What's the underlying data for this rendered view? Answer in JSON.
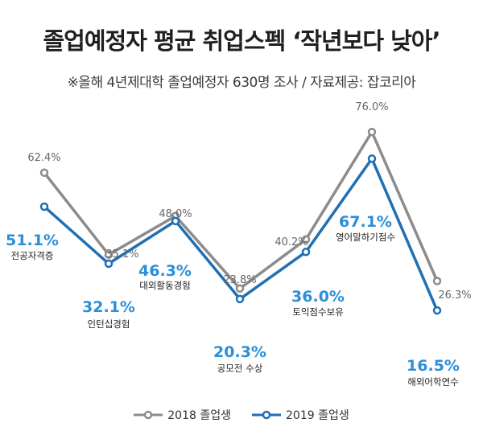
{
  "title": "졸업예정자 평균 취업스펙 ‘작년보다 낮아’",
  "subtitle": "※올해 4년제대학 졸업예정자 630명 조사  / 자료제공: 잡코리아",
  "colors": {
    "series_2018": "#8c8c8c",
    "series_2019": "#1f6fb5",
    "label_2019": "#2a8fd8"
  },
  "chart_data": {
    "type": "line",
    "categories": [
      "전공자격증",
      "인턴십경험",
      "대외활동경험",
      "공모전 수상",
      "토익점수보유",
      "영어말하기점수",
      "해외어학연수"
    ],
    "series": [
      {
        "name": "2018 졸업생",
        "values": [
          62.4,
          35.1,
          48.0,
          23.8,
          40.2,
          76.0,
          26.3
        ],
        "labels": [
          "62.4%",
          "35.1%",
          "48.0%",
          "23.8%",
          "40.2%",
          "76.0%",
          "26.3%"
        ]
      },
      {
        "name": "2019 졸업생",
        "values": [
          51.1,
          32.1,
          46.3,
          20.3,
          36.0,
          67.1,
          16.5
        ],
        "labels": [
          "51.1%",
          "32.1%",
          "46.3%",
          "20.3%",
          "36.0%",
          "67.1%",
          "16.5%"
        ]
      }
    ],
    "ylim": [
      0,
      100
    ],
    "grid": false,
    "legend_position": "bottom"
  }
}
